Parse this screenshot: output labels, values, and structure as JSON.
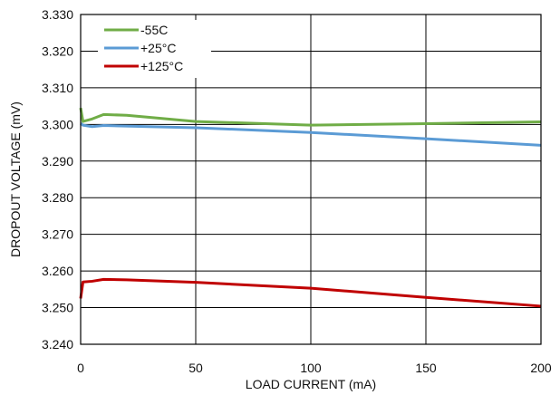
{
  "chart_data": {
    "type": "line",
    "title": "",
    "xlabel": "LOAD CURRENT (mA)",
    "ylabel": "DROPOUT VOLTAGE (mV)",
    "xlim": [
      0,
      200
    ],
    "ylim": [
      3.24,
      3.33
    ],
    "xticks": [
      0,
      50,
      100,
      150,
      200
    ],
    "yticks": [
      3.24,
      3.25,
      3.26,
      3.27,
      3.28,
      3.29,
      3.3,
      3.31,
      3.32,
      3.33
    ],
    "xtick_labels": [
      "0",
      "50",
      "100",
      "150",
      "200"
    ],
    "ytick_labels": [
      "3.240",
      "3.250",
      "3.260",
      "3.270",
      "3.280",
      "3.290",
      "3.300",
      "3.310",
      "3.320",
      "3.330"
    ],
    "grid": true,
    "legend_position": "top-left",
    "series": [
      {
        "name": "-55C",
        "color": "#70ad47",
        "x": [
          0,
          1,
          5,
          10,
          20,
          50,
          100,
          150,
          200
        ],
        "y": [
          3.3045,
          3.3008,
          3.3015,
          3.3027,
          3.3025,
          3.3008,
          3.2998,
          3.3002,
          3.3007
        ]
      },
      {
        "name": "+25°C",
        "color": "#5b9bd5",
        "x": [
          0,
          1,
          5,
          10,
          50,
          100,
          150,
          200
        ],
        "y": [
          3.3003,
          3.2998,
          3.2994,
          3.2997,
          3.2991,
          3.2978,
          3.2961,
          3.2943
        ]
      },
      {
        "name": "+125°C",
        "color": "#c00000",
        "x": [
          0,
          1,
          5,
          10,
          20,
          50,
          100,
          150,
          200
        ],
        "y": [
          3.2525,
          3.257,
          3.2572,
          3.2577,
          3.2576,
          3.2569,
          3.2553,
          3.2528,
          3.2504
        ]
      }
    ]
  }
}
